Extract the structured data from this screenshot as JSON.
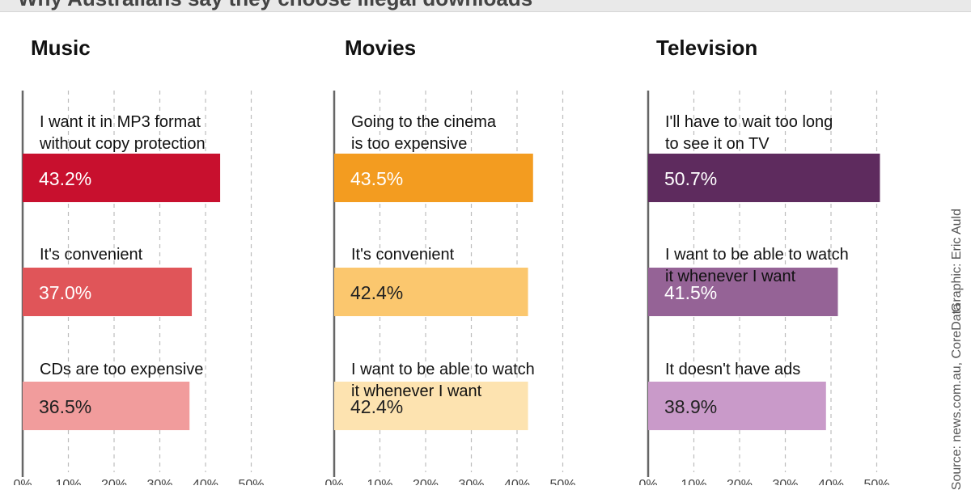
{
  "page_title": "Why Australians say they choose illegal downloads",
  "credit_graphic": "Graphic: Eric Auld",
  "credit_source": "Source: news.com.au, CoreData",
  "chart_data": [
    {
      "type": "bar",
      "title": "Music",
      "categories": [
        "I want it in MP3 format without copy protection",
        "It's convenient",
        "CDs are too expensive"
      ],
      "category_lines": [
        [
          "I want it in MP3 format",
          "without copy protection"
        ],
        [
          "It's convenient"
        ],
        [
          "CDs are too expensive"
        ]
      ],
      "values": [
        43.2,
        37.0,
        36.5
      ],
      "value_labels": [
        "43.2%",
        "37.0%",
        "36.5%"
      ],
      "colors": [
        "#c8102e",
        "#e05559",
        "#f19c9c"
      ],
      "label_colors": [
        "#ffffff",
        "#ffffff",
        "#222222"
      ],
      "xlim": [
        0,
        50
      ],
      "ticks": [
        "0%",
        "10%",
        "20%",
        "30%",
        "40%",
        "50%"
      ]
    },
    {
      "type": "bar",
      "title": "Movies",
      "categories": [
        "Going to the cinema is too expensive",
        "It's convenient",
        "I want to be able to watch it whenever I want"
      ],
      "category_lines": [
        [
          "Going to the cinema",
          "is too expensive"
        ],
        [
          "It's convenient"
        ],
        [
          "I want to be able to watch",
          "it whenever I want"
        ]
      ],
      "values": [
        43.5,
        42.4,
        42.4
      ],
      "value_labels": [
        "43.5%",
        "42.4%",
        "42.4%"
      ],
      "colors": [
        "#f39c20",
        "#fbc76e",
        "#fde3b0"
      ],
      "label_colors": [
        "#ffffff",
        "#222222",
        "#222222"
      ],
      "xlim": [
        0,
        50
      ],
      "ticks": [
        "0%",
        "10%",
        "20%",
        "30%",
        "40%",
        "50%"
      ]
    },
    {
      "type": "bar",
      "title": "Television",
      "categories": [
        "I'll have to wait too long to see it on TV",
        "I want to be able to watch it whenever I want",
        "It doesn't have ads"
      ],
      "category_lines": [
        [
          "I'll have to wait too long",
          "to see it on TV"
        ],
        [
          "I want to be able to watch",
          "it whenever I want"
        ],
        [
          "It doesn't have ads"
        ]
      ],
      "values": [
        50.7,
        41.5,
        38.9
      ],
      "value_labels": [
        "50.7%",
        "41.5%",
        "38.9%"
      ],
      "colors": [
        "#5e2b5e",
        "#956396",
        "#c99ac9"
      ],
      "label_colors": [
        "#ffffff",
        "#ffffff",
        "#222222"
      ],
      "xlim": [
        0,
        50
      ],
      "ticks": [
        "0%",
        "10%",
        "20%",
        "30%",
        "40%",
        "50%"
      ]
    }
  ]
}
